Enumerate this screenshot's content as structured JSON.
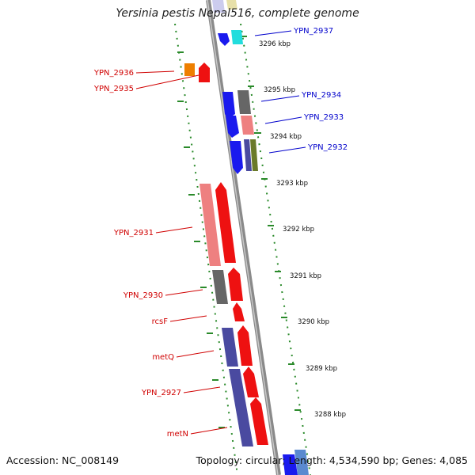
{
  "title": "Yersinia pestis Nepal516, complete genome",
  "footer": {
    "accession": "Accession: NC_008149",
    "summary": "Topology: circular; Length: 4,534,590 bp; Genes: 4,085"
  },
  "colors": {
    "strand_minus_label": "#d00000",
    "strand_plus_label": "#0000cc",
    "backbone": "#8a8a8a",
    "tick": "#2a8a2a"
  },
  "scale_ticks": [
    {
      "label": "3296 kbp"
    },
    {
      "label": "3295 kbp"
    },
    {
      "label": "3294 kbp"
    },
    {
      "label": "3293 kbp"
    },
    {
      "label": "3292 kbp"
    },
    {
      "label": "3291 kbp"
    },
    {
      "label": "3290 kbp"
    },
    {
      "label": "3289 kbp"
    },
    {
      "label": "3288 kbp"
    }
  ],
  "gene_labels": [
    {
      "text": "YPN_2937",
      "color": "#0000cc"
    },
    {
      "text": "YPN_2936",
      "color": "#d00000"
    },
    {
      "text": "YPN_2935",
      "color": "#d00000"
    },
    {
      "text": "YPN_2934",
      "color": "#0000cc"
    },
    {
      "text": "YPN_2933",
      "color": "#0000cc"
    },
    {
      "text": "YPN_2932",
      "color": "#0000cc"
    },
    {
      "text": "YPN_2931",
      "color": "#d00000"
    },
    {
      "text": "YPN_2930",
      "color": "#d00000"
    },
    {
      "text": "rcsF",
      "color": "#d00000"
    },
    {
      "text": "metQ",
      "color": "#d00000"
    },
    {
      "text": "YPN_2927",
      "color": "#d00000"
    },
    {
      "text": "metN",
      "color": "#d00000"
    }
  ]
}
